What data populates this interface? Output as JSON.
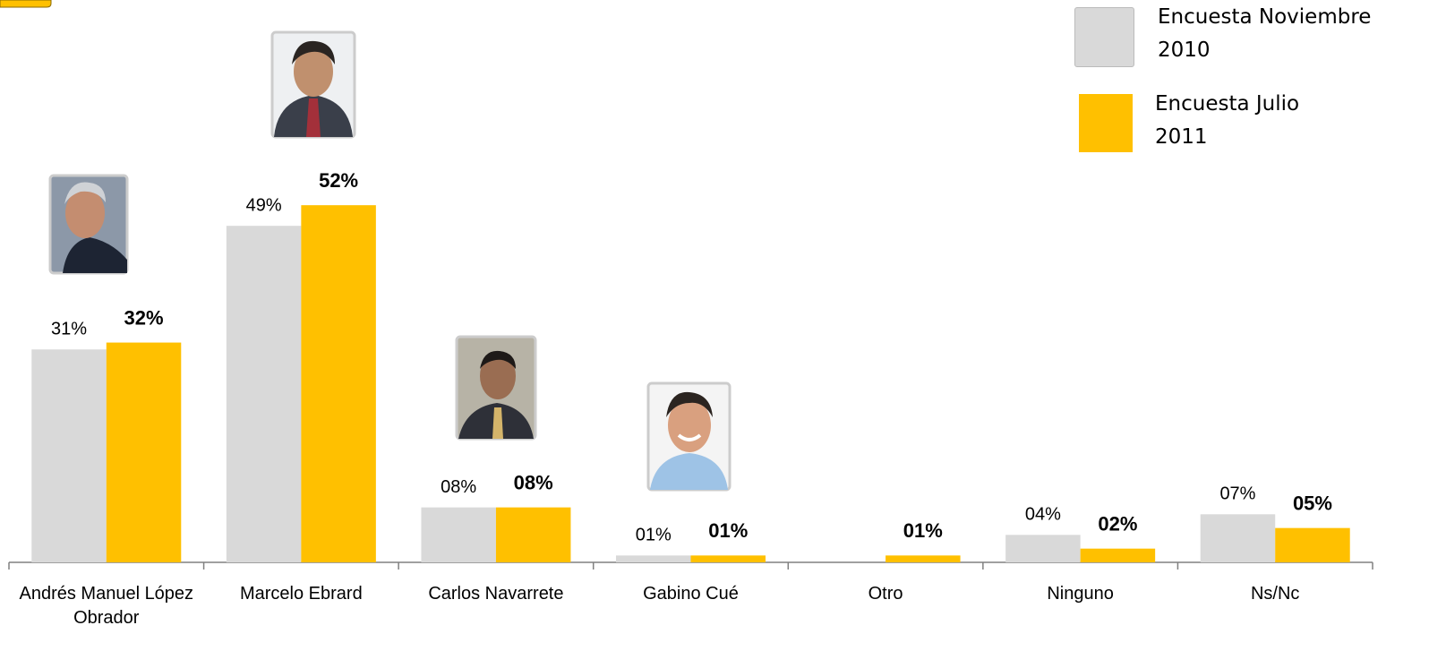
{
  "chart_data": {
    "type": "bar",
    "categories": [
      "Andrés Manuel López Obrador",
      "Marcelo Ebrard",
      "Carlos Navarrete",
      "Gabino Cué",
      "Otro",
      "Ninguno",
      "Ns/Nc"
    ],
    "series": [
      {
        "name": "Encuesta Noviembre 2010",
        "color": "#d9d9d9",
        "values": [
          31,
          49,
          8,
          1,
          null,
          4,
          7
        ],
        "value_labels": [
          "31%",
          "49%",
          "08%",
          "01%",
          null,
          "04%",
          "07%"
        ]
      },
      {
        "name": "Encuesta Julio 2011",
        "color": "#ffc000",
        "values": [
          32,
          52,
          8,
          1,
          1,
          2,
          5
        ],
        "value_labels": [
          "32%",
          "52%",
          "08%",
          "01%",
          "01%",
          "02%",
          "05%"
        ]
      }
    ]
  }
}
